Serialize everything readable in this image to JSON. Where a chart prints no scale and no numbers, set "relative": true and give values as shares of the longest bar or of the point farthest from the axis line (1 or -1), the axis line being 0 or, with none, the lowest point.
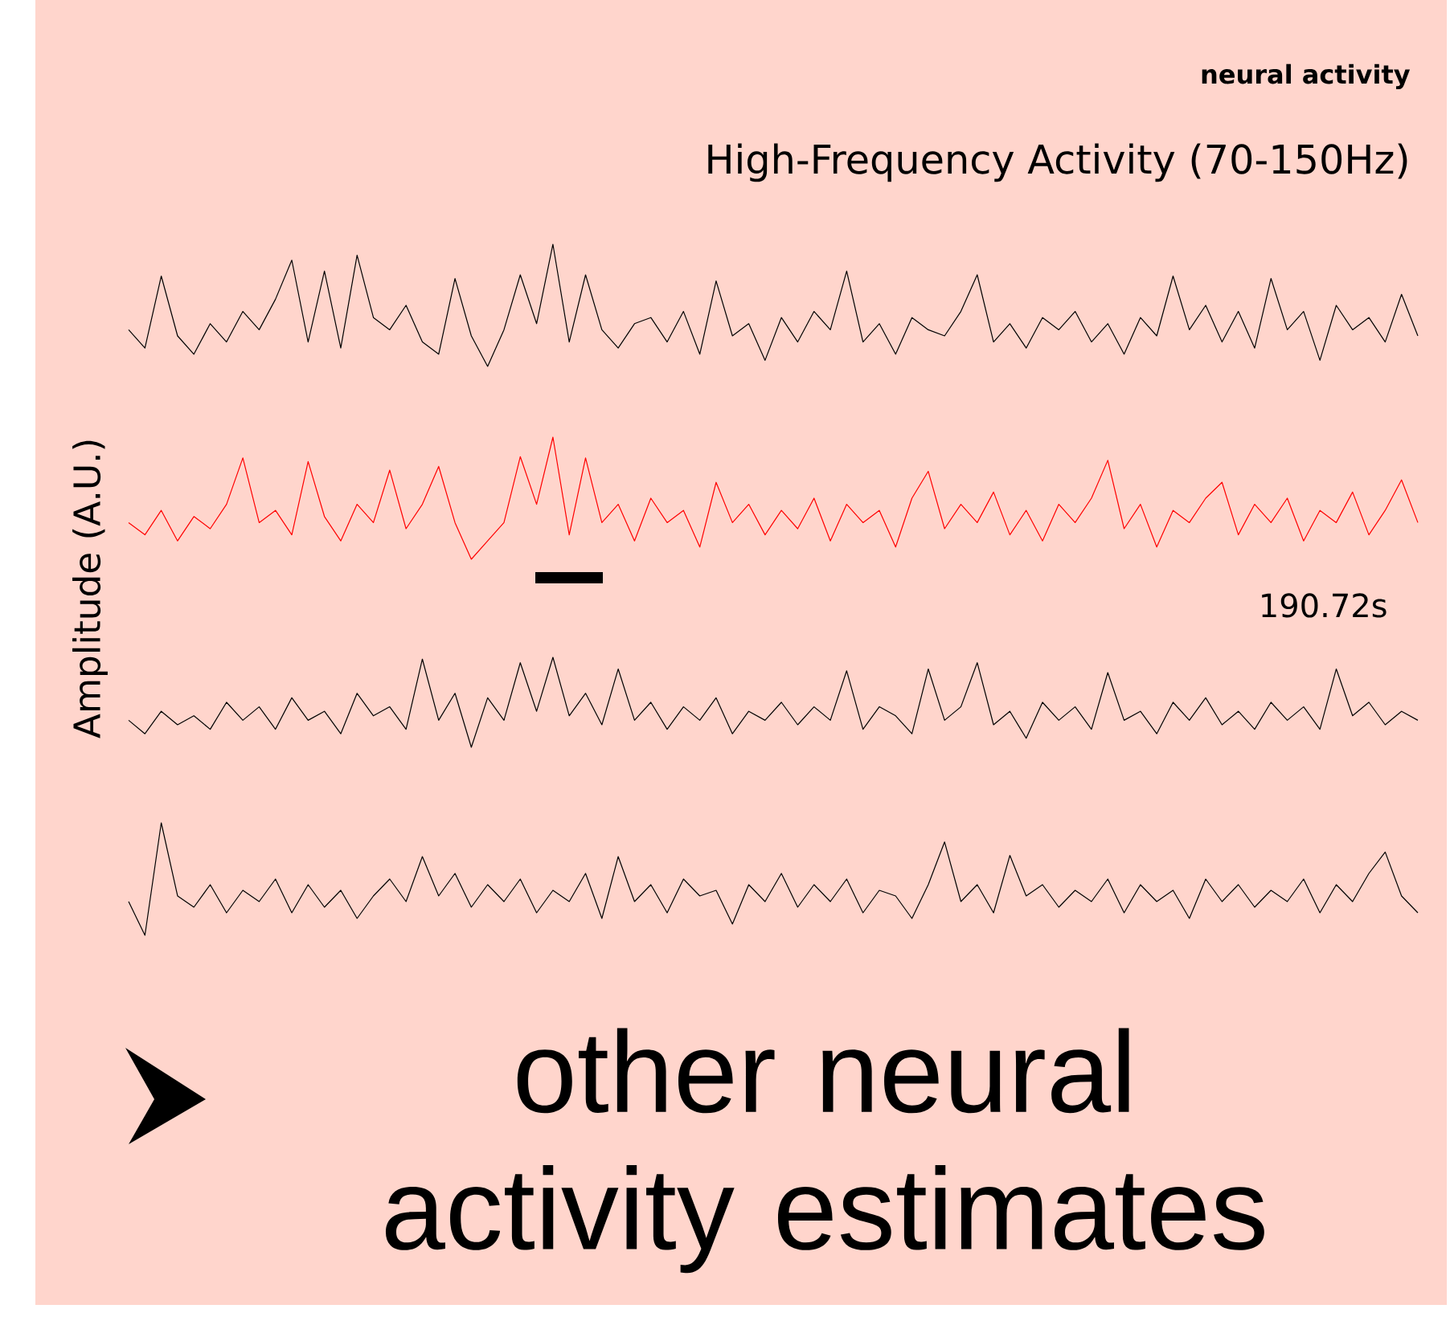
{
  "chart_data": [
    {
      "type": "line",
      "relative": true,
      "title": "neural activity",
      "subtitle": "High-Frequency Activity (70-150Hz)",
      "categories": [
        null,
        null,
        null,
        null,
        null,
        null,
        null,
        null,
        null,
        null,
        null,
        null,
        null,
        null,
        null,
        null,
        null,
        null,
        null,
        null,
        null,
        null,
        null,
        null,
        null,
        null,
        null,
        null,
        null,
        null,
        null,
        null,
        null,
        null,
        null,
        null,
        null,
        null,
        null,
        null,
        null,
        null,
        null,
        null,
        null,
        null,
        null,
        null,
        null,
        null,
        null,
        null,
        null,
        null,
        null,
        null,
        null,
        null,
        null,
        null,
        null,
        null,
        null,
        null,
        null,
        null,
        null,
        null,
        null,
        null,
        null,
        null,
        null,
        null,
        null,
        null,
        null,
        null,
        null,
        null
      ],
      "series": [
        {
          "color": "#000000",
          "values": [
            0.3,
            0.15,
            0.74,
            0.25,
            0.1,
            0.35,
            0.2,
            0.45,
            0.3,
            0.55,
            0.87,
            0.2,
            0.78,
            0.15,
            0.91,
            0.4,
            0.3,
            0.5,
            0.2,
            0.1,
            0.72,
            0.25,
            0,
            0.3,
            0.75,
            0.35,
            1.0,
            0.2,
            0.75,
            0.3,
            0.15,
            0.35,
            0.4,
            0.2,
            0.45,
            0.1,
            0.7,
            0.25,
            0.35,
            0.05,
            0.4,
            0.2,
            0.45,
            0.3,
            0.78,
            0.2,
            0.35,
            0.1,
            0.4,
            0.3,
            0.25,
            0.45,
            0.75,
            0.2,
            0.35,
            0.15,
            0.4,
            0.3,
            0.45,
            0.2,
            0.35,
            0.1,
            0.4,
            0.25,
            0.74,
            0.3,
            0.5,
            0.2,
            0.45,
            0.15,
            0.72,
            0.3,
            0.45,
            0.05,
            0.5,
            0.3,
            0.4,
            0.2,
            0.59,
            0.25
          ]
        }
      ]
    },
    {
      "type": "line",
      "relative": true,
      "ylabel": "Amplitude (A.U.)",
      "annotations": [
        "190.72s"
      ],
      "categories": [
        null,
        null,
        null,
        null,
        null,
        null,
        null,
        null,
        null,
        null,
        null,
        null,
        null,
        null,
        null,
        null,
        null,
        null,
        null,
        null,
        null,
        null,
        null,
        null,
        null,
        null,
        null,
        null,
        null,
        null,
        null,
        null,
        null,
        null,
        null,
        null,
        null,
        null,
        null,
        null,
        null,
        null,
        null,
        null,
        null,
        null,
        null,
        null,
        null,
        null,
        null,
        null,
        null,
        null,
        null,
        null,
        null,
        null,
        null,
        null,
        null,
        null,
        null,
        null,
        null,
        null,
        null,
        null,
        null,
        null,
        null,
        null,
        null,
        null,
        null,
        null,
        null,
        null,
        null,
        null
      ],
      "series": [
        {
          "color": "#ff0000",
          "values": [
            0.3,
            0.2,
            0.4,
            0.15,
            0.35,
            0.25,
            0.45,
            0.83,
            0.3,
            0.4,
            0.2,
            0.8,
            0.35,
            0.15,
            0.45,
            0.3,
            0.73,
            0.25,
            0.45,
            0.76,
            0.3,
            0,
            0.15,
            0.3,
            0.84,
            0.45,
            1.0,
            0.2,
            0.83,
            0.3,
            0.45,
            0.15,
            0.5,
            0.3,
            0.4,
            0.1,
            0.63,
            0.3,
            0.45,
            0.2,
            0.4,
            0.25,
            0.5,
            0.15,
            0.45,
            0.3,
            0.4,
            0.1,
            0.5,
            0.72,
            0.25,
            0.45,
            0.3,
            0.55,
            0.2,
            0.4,
            0.15,
            0.45,
            0.3,
            0.5,
            0.81,
            0.25,
            0.45,
            0.1,
            0.4,
            0.3,
            0.5,
            0.63,
            0.2,
            0.45,
            0.3,
            0.5,
            0.15,
            0.4,
            0.3,
            0.55,
            0.2,
            0.4,
            0.65,
            0.3
          ]
        }
      ]
    },
    {
      "type": "line",
      "relative": true,
      "categories": [
        null,
        null,
        null,
        null,
        null,
        null,
        null,
        null,
        null,
        null,
        null,
        null,
        null,
        null,
        null,
        null,
        null,
        null,
        null,
        null,
        null,
        null,
        null,
        null,
        null,
        null,
        null,
        null,
        null,
        null,
        null,
        null,
        null,
        null,
        null,
        null,
        null,
        null,
        null,
        null,
        null,
        null,
        null,
        null,
        null,
        null,
        null,
        null,
        null,
        null,
        null,
        null,
        null,
        null,
        null,
        null,
        null,
        null,
        null,
        null,
        null,
        null,
        null,
        null,
        null,
        null,
        null,
        null,
        null,
        null,
        null,
        null,
        null,
        null,
        null,
        null,
        null,
        null,
        null,
        null
      ],
      "series": [
        {
          "color": "#000000",
          "values": [
            0.3,
            0.15,
            0.4,
            0.25,
            0.35,
            0.2,
            0.5,
            0.3,
            0.45,
            0.2,
            0.55,
            0.3,
            0.4,
            0.15,
            0.6,
            0.35,
            0.45,
            0.2,
            0.98,
            0.3,
            0.6,
            0,
            0.55,
            0.3,
            0.94,
            0.4,
            1.0,
            0.35,
            0.6,
            0.25,
            0.87,
            0.3,
            0.5,
            0.2,
            0.45,
            0.3,
            0.55,
            0.15,
            0.4,
            0.3,
            0.5,
            0.25,
            0.45,
            0.3,
            0.85,
            0.2,
            0.45,
            0.35,
            0.15,
            0.87,
            0.3,
            0.45,
            0.94,
            0.25,
            0.4,
            0.1,
            0.5,
            0.3,
            0.45,
            0.2,
            0.83,
            0.3,
            0.4,
            0.15,
            0.5,
            0.3,
            0.55,
            0.25,
            0.4,
            0.2,
            0.5,
            0.3,
            0.45,
            0.2,
            0.87,
            0.35,
            0.5,
            0.25,
            0.4,
            0.3
          ]
        }
      ]
    },
    {
      "type": "line",
      "relative": true,
      "annotations": [
        "other neural activity estimates"
      ],
      "categories": [
        null,
        null,
        null,
        null,
        null,
        null,
        null,
        null,
        null,
        null,
        null,
        null,
        null,
        null,
        null,
        null,
        null,
        null,
        null,
        null,
        null,
        null,
        null,
        null,
        null,
        null,
        null,
        null,
        null,
        null,
        null,
        null,
        null,
        null,
        null,
        null,
        null,
        null,
        null,
        null,
        null,
        null,
        null,
        null,
        null,
        null,
        null,
        null,
        null,
        null,
        null,
        null,
        null,
        null,
        null,
        null,
        null,
        null,
        null,
        null,
        null,
        null,
        null,
        null,
        null,
        null,
        null,
        null,
        null,
        null,
        null,
        null,
        null,
        null,
        null,
        null,
        null,
        null,
        null,
        null
      ],
      "series": [
        {
          "color": "#000000",
          "values": [
            0.3,
            0,
            1.0,
            0.35,
            0.25,
            0.45,
            0.2,
            0.4,
            0.3,
            0.5,
            0.2,
            0.45,
            0.25,
            0.4,
            0.15,
            0.35,
            0.5,
            0.3,
            0.7,
            0.35,
            0.55,
            0.25,
            0.45,
            0.3,
            0.5,
            0.2,
            0.4,
            0.3,
            0.55,
            0.15,
            0.7,
            0.3,
            0.45,
            0.2,
            0.5,
            0.35,
            0.4,
            0.1,
            0.45,
            0.3,
            0.55,
            0.25,
            0.45,
            0.3,
            0.5,
            0.2,
            0.4,
            0.35,
            0.15,
            0.45,
            0.83,
            0.3,
            0.45,
            0.2,
            0.71,
            0.35,
            0.45,
            0.25,
            0.4,
            0.3,
            0.5,
            0.2,
            0.45,
            0.3,
            0.4,
            0.15,
            0.5,
            0.3,
            0.45,
            0.25,
            0.4,
            0.3,
            0.5,
            0.2,
            0.45,
            0.3,
            0.55,
            0.74,
            0.35,
            0.2
          ]
        }
      ]
    }
  ]
}
